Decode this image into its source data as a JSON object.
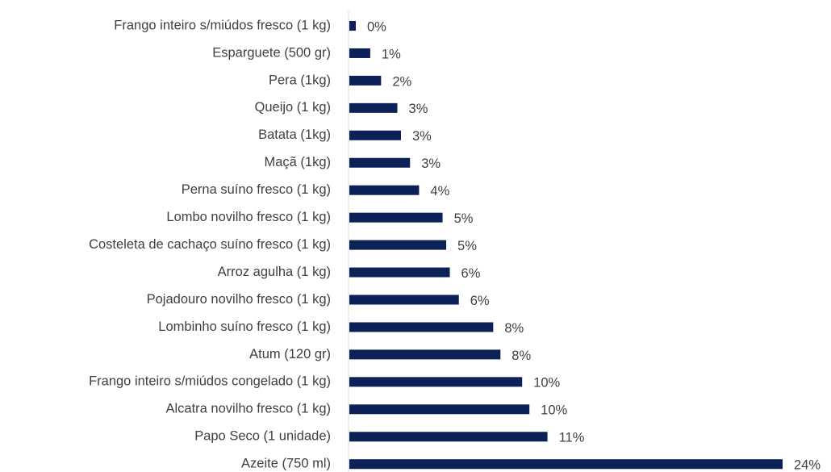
{
  "chart_data": {
    "type": "bar",
    "orientation": "horizontal",
    "color": "#0c2158",
    "categories": [
      "Frango inteiro s/miúdos fresco (1 kg)",
      "Esparguete (500 gr)",
      "Pera (1kg)",
      "Queijo (1 kg)",
      "Batata (1kg)",
      "Maçã (1kg)",
      "Perna suíno fresco (1 kg)",
      "Lombo novilho fresco (1 kg)",
      "Costeleta de cachaço suíno fresco (1 kg)",
      "Arroz agulha (1 kg)",
      "Pojadouro novilho fresco (1 kg)",
      "Lombinho suíno fresco (1 kg)",
      "Atum (120 gr)",
      "Frango inteiro s/miúdos congelado (1 kg)",
      "Alcatra novilho fresco (1 kg)",
      "Papo Seco (1 unidade)",
      "Azeite (750 ml)"
    ],
    "values": [
      0.4,
      1.2,
      1.8,
      2.7,
      2.9,
      3.4,
      3.9,
      5.2,
      5.4,
      5.6,
      6.1,
      8.0,
      8.4,
      9.6,
      10.0,
      11.0,
      24.0
    ],
    "value_labels": [
      "0%",
      "1%",
      "2%",
      "3%",
      "3%",
      "3%",
      "4%",
      "5%",
      "5%",
      "6%",
      "6%",
      "8%",
      "8%",
      "10%",
      "10%",
      "11%",
      "24%"
    ]
  }
}
